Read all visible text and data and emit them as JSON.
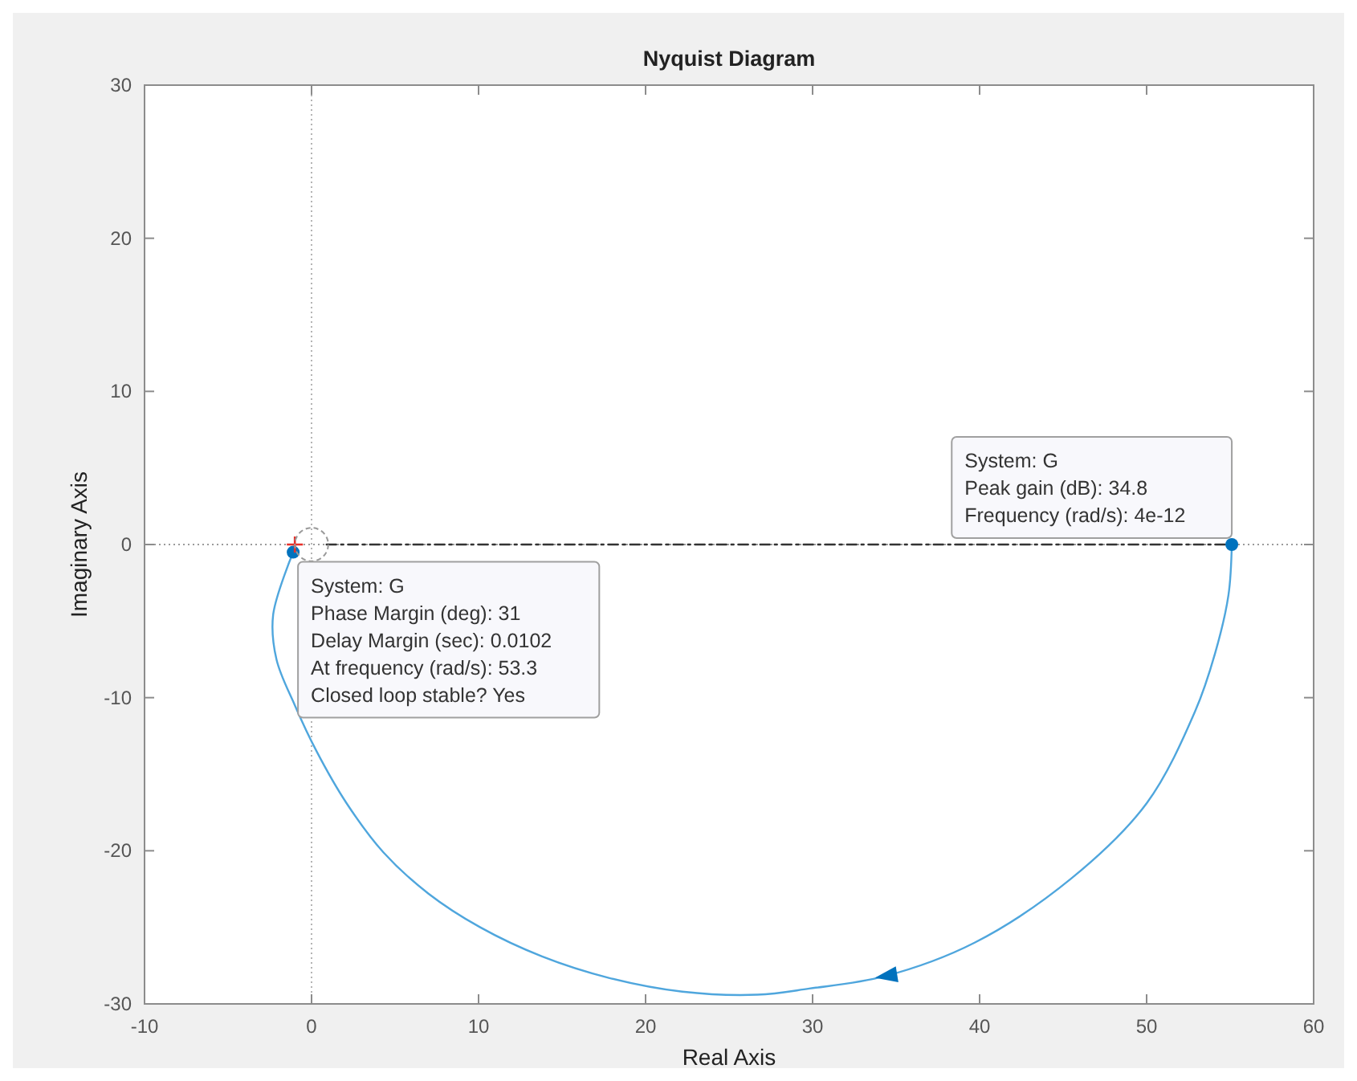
{
  "chart_data": {
    "type": "line",
    "title": "Nyquist Diagram",
    "xlabel": "Real Axis",
    "ylabel": "Imaginary Axis",
    "xlim": [
      -10,
      60
    ],
    "ylim": [
      -30,
      30
    ],
    "xticks": [
      -10,
      0,
      10,
      20,
      30,
      40,
      50,
      60
    ],
    "yticks": [
      -30,
      -20,
      -10,
      0,
      10,
      20,
      30
    ],
    "grid": false,
    "series": [
      {
        "color": "#4fa6dd",
        "line_style": "solid",
        "x": [
          55.1,
          54.9,
          54.1,
          52.9,
          50.0,
          45.5,
          39.7,
          34.3,
          29.8,
          26.7,
          22.2,
          17.8,
          13.8,
          10.1,
          7.0,
          4.3,
          2.1,
          0.3,
          -1.0,
          -2.1,
          -2.3,
          -1.1
        ],
        "values": [
          0,
          -3.3,
          -7.1,
          -10.9,
          -16.9,
          -21.8,
          -26.0,
          -28.2,
          -29.0,
          -29.4,
          -29.2,
          -28.3,
          -26.9,
          -25.0,
          -22.8,
          -20.1,
          -16.9,
          -13.5,
          -10.5,
          -7.5,
          -4.6,
          -0.5
        ]
      },
      {
        "color": "#333333",
        "line_style": "dashed",
        "x": [
          0.9,
          55.1
        ],
        "values": [
          0,
          0
        ]
      },
      {
        "type": "scatter",
        "color": "#0072bd",
        "marker": "circle",
        "x": [
          55.1,
          -1.1
        ],
        "values": [
          0,
          -0.5
        ]
      },
      {
        "type": "scatter",
        "color": "#e8302a",
        "marker": "cross",
        "x": [
          -1
        ],
        "values": [
          0
        ]
      }
    ],
    "ref_lines": [
      {
        "axis": "x",
        "value": 0,
        "color": "#b4b4b4",
        "line_style": "dotted"
      },
      {
        "axis": "y",
        "value": 0,
        "color": "#9a9a9a",
        "line_style": "dotted"
      }
    ],
    "annotations": [
      {
        "text": "System: G\nPeak gain (dB): 34.8\nFrequency (rad/s): 4e-12",
        "x": 55.1,
        "y": 0
      },
      {
        "text": "System: G\nPhase Margin (deg): 31\nDelay Margin (sec): 0.0102\nAt frequency (rad/s): 53.3\nClosed loop stable? Yes",
        "x": -1.1,
        "y": -0.5
      }
    ]
  }
}
